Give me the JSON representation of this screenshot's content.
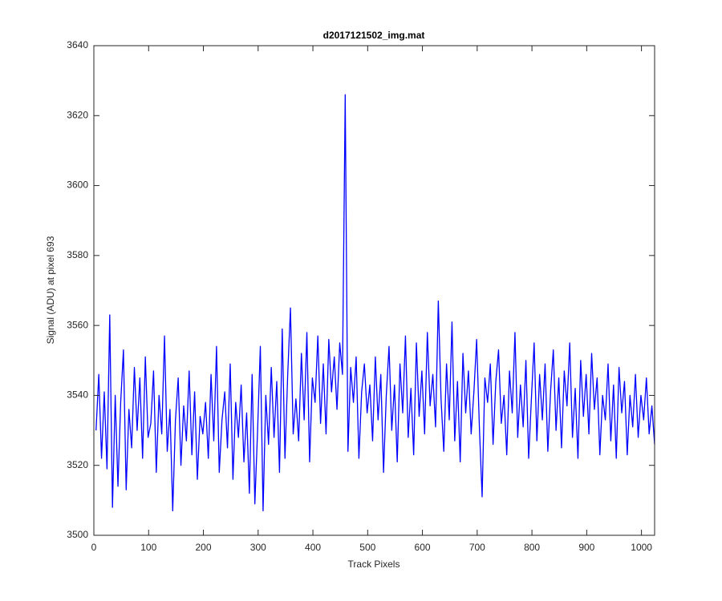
{
  "chart_data": {
    "type": "line",
    "title": "d2017121502_img.mat",
    "xlabel": "Track Pixels",
    "ylabel": "Signal (ADU) at pixel 693",
    "color": "#0000ff",
    "xlim": [
      0,
      1024
    ],
    "xticks": [
      0,
      100,
      200,
      300,
      400,
      500,
      600,
      700,
      800,
      900,
      1000
    ],
    "ylim": [
      3500,
      3640
    ],
    "yticks": [
      3500,
      3520,
      3540,
      3560,
      3580,
      3600,
      3620,
      3640
    ],
    "x": [
      4,
      9,
      14,
      19,
      24,
      29,
      34,
      39,
      44,
      49,
      54,
      59,
      64,
      69,
      74,
      79,
      84,
      89,
      94,
      99,
      104,
      109,
      114,
      119,
      124,
      129,
      134,
      139,
      144,
      149,
      154,
      159,
      164,
      169,
      174,
      179,
      184,
      189,
      194,
      199,
      204,
      209,
      214,
      219,
      224,
      229,
      234,
      239,
      244,
      249,
      254,
      259,
      264,
      269,
      274,
      279,
      284,
      289,
      294,
      299,
      304,
      309,
      314,
      319,
      324,
      329,
      334,
      339,
      344,
      349,
      354,
      359,
      364,
      369,
      374,
      379,
      384,
      389,
      394,
      399,
      404,
      409,
      414,
      419,
      424,
      429,
      434,
      439,
      444,
      449,
      454,
      459,
      464,
      469,
      474,
      479,
      484,
      489,
      494,
      499,
      504,
      509,
      514,
      519,
      524,
      529,
      534,
      539,
      544,
      549,
      554,
      559,
      564,
      569,
      574,
      579,
      584,
      589,
      594,
      599,
      604,
      609,
      614,
      619,
      624,
      629,
      634,
      639,
      644,
      649,
      654,
      659,
      664,
      669,
      674,
      679,
      684,
      689,
      694,
      699,
      704,
      709,
      714,
      719,
      724,
      729,
      734,
      739,
      744,
      749,
      754,
      759,
      764,
      769,
      774,
      779,
      784,
      789,
      794,
      799,
      804,
      809,
      814,
      819,
      824,
      829,
      834,
      839,
      844,
      849,
      854,
      859,
      864,
      869,
      874,
      879,
      884,
      889,
      894,
      899,
      904,
      909,
      914,
      919,
      924,
      929,
      934,
      939,
      944,
      949,
      954,
      959,
      964,
      969,
      974,
      979,
      984,
      989,
      994,
      999,
      1004,
      1009,
      1014,
      1019,
      1024
    ],
    "values": [
      3530,
      3546,
      3522,
      3541,
      3519,
      3563,
      3508,
      3540,
      3514,
      3538,
      3553,
      3513,
      3536,
      3525,
      3548,
      3530,
      3545,
      3522,
      3551,
      3528,
      3532,
      3547,
      3518,
      3540,
      3529,
      3557,
      3524,
      3536,
      3507,
      3533,
      3545,
      3520,
      3537,
      3527,
      3547,
      3523,
      3541,
      3516,
      3534,
      3529,
      3538,
      3522,
      3546,
      3527,
      3554,
      3518,
      3533,
      3541,
      3525,
      3549,
      3516,
      3538,
      3528,
      3543,
      3521,
      3535,
      3512,
      3546,
      3509,
      3530,
      3554,
      3507,
      3540,
      3526,
      3548,
      3528,
      3544,
      3518,
      3559,
      3522,
      3546,
      3565,
      3529,
      3539,
      3527,
      3552,
      3533,
      3558,
      3521,
      3545,
      3538,
      3557,
      3532,
      3549,
      3529,
      3556,
      3541,
      3551,
      3536,
      3555,
      3546,
      3626,
      3524,
      3548,
      3538,
      3551,
      3522,
      3541,
      3549,
      3535,
      3543,
      3527,
      3551,
      3533,
      3546,
      3518,
      3540,
      3554,
      3530,
      3543,
      3521,
      3549,
      3535,
      3557,
      3528,
      3542,
      3523,
      3555,
      3534,
      3547,
      3529,
      3558,
      3537,
      3546,
      3531,
      3567,
      3539,
      3524,
      3549,
      3533,
      3561,
      3527,
      3544,
      3521,
      3552,
      3535,
      3547,
      3529,
      3541,
      3556,
      3531,
      3511,
      3545,
      3538,
      3549,
      3526,
      3544,
      3553,
      3532,
      3540,
      3523,
      3547,
      3535,
      3558,
      3528,
      3543,
      3531,
      3550,
      3522,
      3539,
      3555,
      3527,
      3546,
      3533,
      3549,
      3524,
      3541,
      3553,
      3530,
      3545,
      3525,
      3547,
      3537,
      3555,
      3528,
      3542,
      3522,
      3550,
      3534,
      3546,
      3529,
      3552,
      3536,
      3545,
      3523,
      3540,
      3533,
      3549,
      3527,
      3543,
      3522,
      3548,
      3535,
      3544,
      3523,
      3540,
      3531,
      3546,
      3528,
      3540,
      3533,
      3545,
      3529,
      3537,
      3526
    ]
  }
}
